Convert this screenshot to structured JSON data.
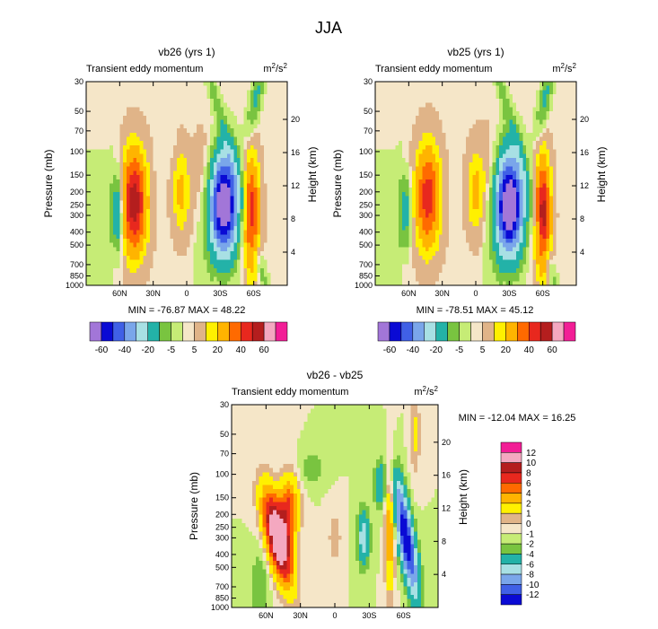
{
  "title": "JJA",
  "colors": {
    "main_levels": [
      -60,
      -50,
      -40,
      -30,
      -20,
      -10,
      -5,
      -1,
      1,
      5,
      10,
      20,
      30,
      40,
      50,
      60
    ],
    "diff_levels": [
      -12,
      -10,
      -8,
      -6,
      -4,
      -2,
      -1,
      0,
      1,
      2,
      4,
      6,
      8,
      10,
      12
    ],
    "palette": [
      "#a276d8",
      "#0a0ad4",
      "#4060e6",
      "#7aa6ea",
      "#a8e0e4",
      "#23b2a8",
      "#79c440",
      "#c6ec76",
      "#f5e6c8",
      "#e0b488",
      "#fff000",
      "#ffb400",
      "#ff6a00",
      "#e8281e",
      "#b41e1e",
      "#f4a8c0",
      "#f21e96"
    ]
  },
  "panels": [
    {
      "id": "vb26",
      "title": "vb26 (yrs 1)",
      "subtitle_left": "Transient eddy momentum",
      "subtitle_right_base": "m",
      "subtitle_right_sup1": "2",
      "subtitle_right_mid": "/s",
      "subtitle_right_sup2": "2",
      "ylabel": "Pressure (mb)",
      "ylabel_right": "Height (km)",
      "minmax": "MIN = -76.87  MAX = 48.22",
      "extrema": {
        "min": -76.87,
        "max": 48.22
      }
    },
    {
      "id": "vb25",
      "title": "vb25 (yrs 1)",
      "subtitle_left": "Transient eddy momentum",
      "subtitle_right_base": "m",
      "subtitle_right_sup1": "2",
      "subtitle_right_mid": "/s",
      "subtitle_right_sup2": "2",
      "ylabel": "Pressure (mb)",
      "ylabel_right": "Height (km)",
      "minmax": "MIN = -78.51  MAX = 45.12",
      "extrema": {
        "min": -78.51,
        "max": 45.12
      }
    },
    {
      "id": "diff",
      "title": "vb26 - vb25",
      "subtitle_left": "Transient eddy momentum",
      "subtitle_right_base": "m",
      "subtitle_right_sup1": "2",
      "subtitle_right_mid": "/s",
      "subtitle_right_sup2": "2",
      "ylabel": "Pressure (mb)",
      "ylabel_right": "Height (km)",
      "minmax": "MIN = -12.04  MAX = 16.25",
      "extrema": {
        "min": -12.04,
        "max": 16.25
      }
    }
  ],
  "chart_data": [
    {
      "type": "heatmap",
      "name": "vb26 (yrs 1)",
      "field": "Transient eddy momentum",
      "units": "m2/s2",
      "x_ticks": [
        "60N",
        "30N",
        "0",
        "30S",
        "60S"
      ],
      "x_values": [
        60,
        30,
        0,
        -30,
        -60
      ],
      "xlim": [
        90,
        -90
      ],
      "y_ticks": [
        "30",
        "50",
        "70",
        "100",
        "150",
        "200",
        "250",
        "300",
        "400",
        "500",
        "700",
        "850",
        "1000"
      ],
      "y_values": [
        30,
        50,
        70,
        100,
        150,
        200,
        250,
        300,
        400,
        500,
        700,
        850,
        1000
      ],
      "ylim": [
        1000,
        30
      ],
      "y2_ticks": [
        "4",
        "8",
        "12",
        "16",
        "20"
      ],
      "y2_values": [
        4,
        8,
        12,
        16,
        20
      ],
      "contour_levels": [
        -60,
        -50,
        -40,
        -30,
        -20,
        -10,
        -5,
        -1,
        1,
        5,
        10,
        20,
        30,
        40,
        50,
        60
      ],
      "colorbar_labels": [
        "-60",
        "-40",
        "-20",
        "-5",
        "5",
        "20",
        "40",
        "60"
      ],
      "features": [
        {
          "lat": 47,
          "p": 240,
          "value": 48.22
        },
        {
          "lat": -33,
          "p": 250,
          "value": -76.87
        },
        {
          "lat": -58,
          "p": 300,
          "value": 38
        },
        {
          "lat": 62,
          "p": 280,
          "value": -22
        },
        {
          "lat": 5,
          "p": 200,
          "value": 12
        },
        {
          "lat": -62,
          "p": 40,
          "value": -12
        }
      ]
    },
    {
      "type": "heatmap",
      "name": "vb25 (yrs 1)",
      "field": "Transient eddy momentum",
      "units": "m2/s2",
      "x_ticks": [
        "60N",
        "30N",
        "0",
        "30S",
        "60S"
      ],
      "x_values": [
        60,
        30,
        0,
        -30,
        -60
      ],
      "xlim": [
        90,
        -90
      ],
      "y_ticks": [
        "30",
        "50",
        "70",
        "100",
        "150",
        "200",
        "250",
        "300",
        "400",
        "500",
        "700",
        "850",
        "1000"
      ],
      "y_values": [
        30,
        50,
        70,
        100,
        150,
        200,
        250,
        300,
        400,
        500,
        700,
        850,
        1000
      ],
      "ylim": [
        1000,
        30
      ],
      "y2_ticks": [
        "4",
        "8",
        "12",
        "16",
        "20"
      ],
      "y2_values": [
        4,
        8,
        12,
        16,
        20
      ],
      "contour_levels": [
        -60,
        -50,
        -40,
        -30,
        -20,
        -10,
        -5,
        -1,
        1,
        5,
        10,
        20,
        30,
        40,
        50,
        60
      ],
      "colorbar_labels": [
        "-60",
        "-40",
        "-20",
        "-5",
        "5",
        "20",
        "40",
        "60"
      ],
      "features": [
        {
          "lat": 43,
          "p": 220,
          "value": 36
        },
        {
          "lat": -30,
          "p": 250,
          "value": -78.51
        },
        {
          "lat": -60,
          "p": 300,
          "value": 45.12
        },
        {
          "lat": 63,
          "p": 280,
          "value": -15
        },
        {
          "lat": 0,
          "p": 200,
          "value": 12
        },
        {
          "lat": -62,
          "p": 40,
          "value": -12
        }
      ]
    },
    {
      "type": "heatmap",
      "name": "vb26 - vb25",
      "field": "Transient eddy momentum",
      "units": "m2/s2",
      "x_ticks": [
        "60N",
        "30N",
        "0",
        "30S",
        "60S"
      ],
      "x_values": [
        60,
        30,
        0,
        -30,
        -60
      ],
      "xlim": [
        90,
        -90
      ],
      "y_ticks": [
        "30",
        "50",
        "70",
        "100",
        "150",
        "200",
        "250",
        "300",
        "400",
        "500",
        "700",
        "850",
        "1000"
      ],
      "y_values": [
        30,
        50,
        70,
        100,
        150,
        200,
        250,
        300,
        400,
        500,
        700,
        850,
        1000
      ],
      "ylim": [
        1000,
        30
      ],
      "y2_ticks": [
        "4",
        "8",
        "12",
        "16",
        "20"
      ],
      "y2_values": [
        4,
        8,
        12,
        16,
        20
      ],
      "contour_levels": [
        -12,
        -10,
        -8,
        -6,
        -4,
        -2,
        -1,
        0,
        1,
        2,
        4,
        6,
        8,
        10,
        12
      ],
      "colorbar_labels": [
        "12",
        "10",
        "8",
        "6",
        "4",
        "2",
        "1",
        "0",
        "-1",
        "-2",
        "-4",
        "-6",
        "-8",
        "-10",
        "-12"
      ],
      "features": [
        {
          "lat": 57,
          "p": 290,
          "value": 16.25
        },
        {
          "lat": 40,
          "p": 180,
          "value": 8
        },
        {
          "lat": -62,
          "p": 300,
          "value": -12.04
        },
        {
          "lat": -40,
          "p": 120,
          "value": -4
        },
        {
          "lat": -25,
          "p": 300,
          "value": -5
        },
        {
          "lat": -48,
          "p": 250,
          "value": 6
        },
        {
          "lat": 65,
          "p": 700,
          "value": -2
        }
      ]
    }
  ]
}
